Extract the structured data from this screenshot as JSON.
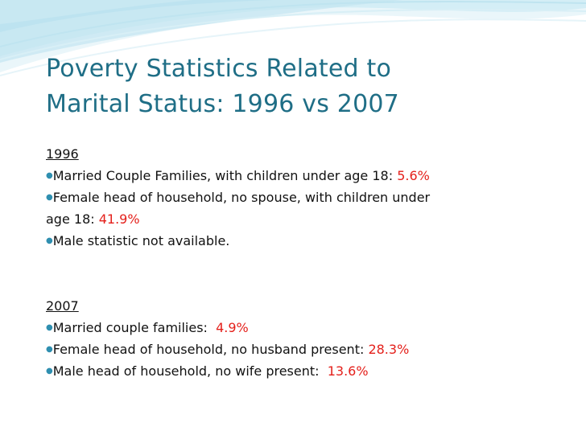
{
  "slide": {
    "title_line1": "Poverty Statistics Related to",
    "title_line2": "Marital Status: 1996 vs 2007",
    "sections": [
      {
        "label": "1996",
        "items": [
          {
            "text": "Married Couple Families, with children under age 18: ",
            "value": "5.6%"
          },
          {
            "text_line1": "Female head of household, no spouse, with children under",
            "text_line2": "age 18: ",
            "value": "41.9%"
          },
          {
            "text": "Male statistic not available."
          }
        ]
      },
      {
        "label": "2007",
        "items": [
          {
            "text": "Married couple families:  ",
            "value": "4.9%"
          },
          {
            "text": "Female head of household, no husband present: ",
            "value": "28.3%"
          },
          {
            "text": "Male head of household, no wife present:  ",
            "value": "13.6%"
          }
        ]
      }
    ],
    "colors": {
      "title": "#1f6e86",
      "value": "#e4201b",
      "bullet": "#2f8fb0",
      "wave": "#9fd4e6"
    }
  }
}
